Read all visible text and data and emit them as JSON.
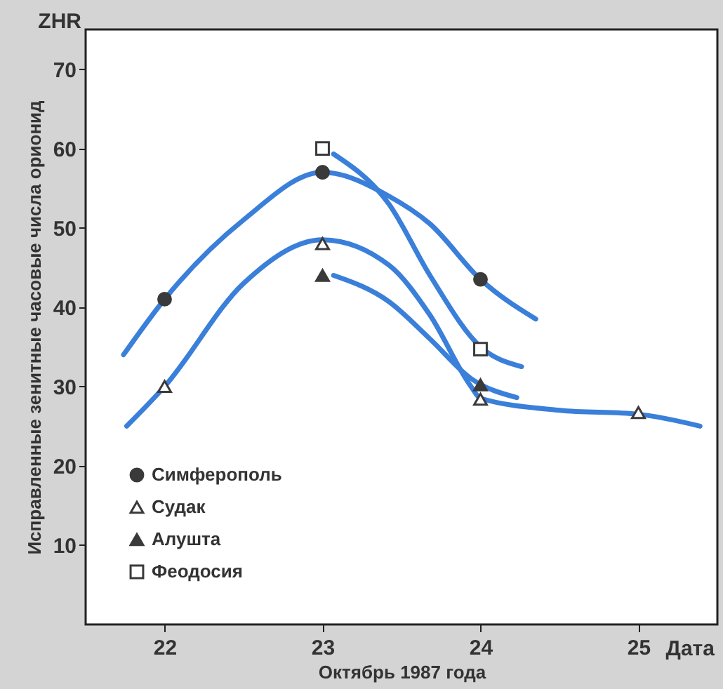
{
  "chart_data": {
    "type": "scatter",
    "xlabel": "Октябрь 1987 года",
    "ylabel": "Исправленные зенитные часовые числа орионид",
    "annotations": [
      "ZHR",
      "Дата"
    ],
    "xlim": [
      21.5,
      25.5
    ],
    "xticks": [
      22,
      23,
      24,
      25
    ],
    "ylim": [
      0,
      75
    ],
    "yticks": [
      10,
      20,
      30,
      40,
      50,
      60,
      70
    ],
    "grid": false,
    "legend": "bottom left",
    "line_style": "solid",
    "series": [
      {
        "type": "line",
        "color": "#3a7fd9",
        "x": [
          21.74,
          22,
          22.5,
          23,
          23.42,
          23.68,
          24,
          24.35
        ],
        "values": [
          34,
          41,
          51,
          57,
          54,
          50.5,
          43.5,
          38.5
        ]
      },
      {
        "type": "line",
        "color": "#3a7fd9",
        "x": [
          21.76,
          22,
          22.5,
          23,
          23.42,
          23.68,
          23.94,
          24,
          24.5,
          25,
          25.39
        ],
        "values": [
          25,
          30,
          43,
          48.5,
          45.3,
          39,
          30,
          28.5,
          27,
          26.5,
          25
        ]
      },
      {
        "type": "line",
        "color": "#3a7fd9",
        "x": [
          23.07,
          23.42,
          23.68,
          24,
          24.26
        ],
        "values": [
          59.3,
          53,
          44,
          35,
          32.5
        ]
      },
      {
        "type": "line",
        "color": "#3a7fd9",
        "x": [
          23.07,
          23.42,
          23.68,
          23.94,
          24.23
        ],
        "values": [
          44,
          40.7,
          36,
          31,
          28.6
        ]
      },
      {
        "name": "Симферополь",
        "marker": "circle",
        "color": "#3a3a3a",
        "x": [
          22,
          23,
          24
        ],
        "values": [
          41,
          57,
          43.5
        ]
      },
      {
        "name": "Судак",
        "marker": "triangle",
        "color": "#ffffff",
        "x": [
          22,
          23,
          24,
          25
        ],
        "values": [
          30,
          48,
          28.4,
          26.7
        ]
      },
      {
        "name": "Алушта",
        "marker": "triangle",
        "color": "#3a3a3a",
        "x": [
          23,
          24
        ],
        "values": [
          44,
          30.2
        ]
      },
      {
        "name": "Феодосия",
        "marker": "square",
        "color": "#ffffff",
        "x": [
          23,
          24
        ],
        "values": [
          60,
          34.7
        ]
      }
    ]
  }
}
